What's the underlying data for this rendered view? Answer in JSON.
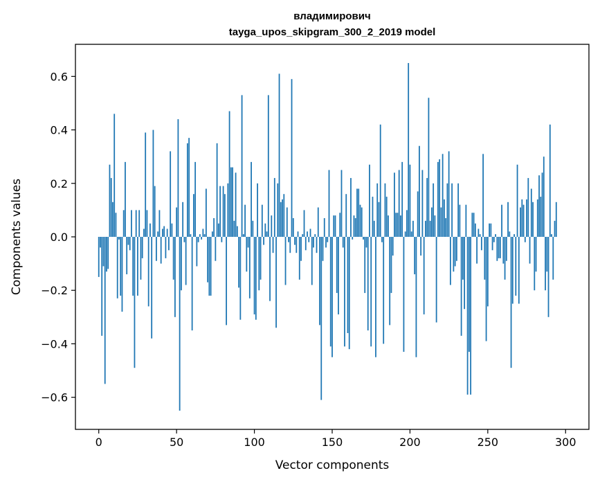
{
  "chart_data": {
    "type": "bar",
    "title_line1": "владимирович",
    "title_line2": "tayga_upos_skipgram_300_2_2019 model",
    "xlabel": "Vector components",
    "ylabel": "Components values",
    "xlim": [
      -15,
      315
    ],
    "ylim": [
      -0.72,
      0.72
    ],
    "xticks": [
      0,
      50,
      100,
      150,
      200,
      250,
      300
    ],
    "xtick_labels": [
      "0",
      "50",
      "100",
      "150",
      "200",
      "250",
      "300"
    ],
    "yticks": [
      -0.6,
      -0.4,
      -0.2,
      0.0,
      0.2,
      0.4,
      0.6
    ],
    "ytick_labels": [
      "−0.6",
      "−0.4",
      "−0.2",
      "0.0",
      "0.2",
      "0.4",
      "0.6"
    ],
    "bar_color": "#1f77b4",
    "values": [
      -0.15,
      -0.04,
      -0.37,
      -0.11,
      -0.55,
      -0.13,
      -0.12,
      0.27,
      0.22,
      0.13,
      0.46,
      0.09,
      -0.23,
      -0.01,
      -0.22,
      -0.28,
      0.1,
      0.28,
      -0.14,
      -0.03,
      -0.05,
      0.1,
      -0.22,
      -0.49,
      0.1,
      -0.22,
      0.1,
      -0.16,
      -0.08,
      0.03,
      0.39,
      0.1,
      -0.26,
      0.05,
      -0.38,
      0.4,
      0.19,
      -0.09,
      0.02,
      0.1,
      -0.1,
      0.03,
      0.04,
      -0.08,
      0.03,
      -0.05,
      0.32,
      0.05,
      -0.16,
      -0.3,
      0.11,
      0.44,
      -0.65,
      -0.2,
      0.13,
      -0.02,
      -0.18,
      0.35,
      0.37,
      0.01,
      -0.35,
      0.16,
      0.28,
      -0.11,
      -0.02,
      0.01,
      -0.01,
      0.03,
      0.01,
      0.18,
      -0.17,
      -0.22,
      -0.22,
      0.02,
      0.07,
      -0.09,
      0.35,
      0.05,
      0.19,
      -0.02,
      0.19,
      0.16,
      -0.33,
      0.2,
      0.47,
      0.26,
      0.26,
      0.06,
      0.24,
      0.04,
      -0.19,
      -0.31,
      0.53,
      0.01,
      0.12,
      -0.13,
      -0.04,
      -0.23,
      0.28,
      0.06,
      -0.29,
      -0.31,
      0.2,
      -0.2,
      -0.16,
      0.12,
      -0.03,
      0.05,
      0.02,
      0.53,
      -0.24,
      0.08,
      -0.06,
      0.22,
      -0.34,
      0.2,
      0.61,
      0.13,
      0.14,
      0.16,
      -0.18,
      0.11,
      -0.02,
      -0.06,
      0.59,
      0.07,
      -0.03,
      -0.06,
      0.02,
      -0.16,
      -0.09,
      0.01,
      0.1,
      -0.05,
      0.02,
      -0.02,
      0.03,
      -0.18,
      -0.04,
      0.01,
      -0.06,
      0.11,
      -0.33,
      -0.61,
      -0.09,
      0.07,
      -0.04,
      -0.02,
      0.25,
      -0.41,
      -0.45,
      0.08,
      0.08,
      -0.21,
      -0.29,
      0.09,
      0.25,
      -0.04,
      -0.41,
      0.16,
      -0.36,
      -0.42,
      0.22,
      -0.01,
      0.08,
      0.07,
      0.18,
      0.18,
      0.12,
      0.11,
      -0.01,
      -0.21,
      -0.04,
      -0.35,
      0.27,
      -0.41,
      0.15,
      0.06,
      -0.45,
      0.2,
      0.13,
      0.42,
      -0.02,
      -0.4,
      0.2,
      0.15,
      0.08,
      -0.33,
      -0.21,
      -0.07,
      0.24,
      0.09,
      0.09,
      0.25,
      0.08,
      0.28,
      -0.43,
      0.02,
      0.1,
      0.65,
      0.27,
      0.02,
      0.06,
      -0.14,
      -0.45,
      0.17,
      0.34,
      -0.07,
      0.25,
      -0.29,
      0.06,
      0.22,
      0.52,
      0.06,
      0.11,
      0.2,
      0.08,
      -0.32,
      0.28,
      0.29,
      0.11,
      0.31,
      0.14,
      0.07,
      0.2,
      0.32,
      -0.18,
      0.2,
      -0.13,
      -0.11,
      -0.09,
      0.2,
      0.12,
      -0.37,
      -0.16,
      -0.27,
      0.12,
      -0.59,
      -0.43,
      -0.59,
      0.09,
      0.09,
      0.05,
      -0.1,
      0.03,
      0.01,
      -0.05,
      0.31,
      -0.16,
      -0.39,
      -0.26,
      0.05,
      0.05,
      -0.05,
      -0.02,
      0.01,
      -0.09,
      -0.08,
      -0.08,
      0.12,
      -0.1,
      -0.16,
      -0.09,
      0.13,
      0.02,
      -0.49,
      -0.25,
      0.01,
      -0.22,
      0.27,
      -0.25,
      0.11,
      0.14,
      0.12,
      -0.02,
      0.14,
      0.22,
      -0.1,
      0.18,
      0.13,
      -0.2,
      -0.13,
      0.14,
      0.23,
      0.15,
      0.24,
      0.3,
      -0.2,
      -0.13,
      -0.3,
      0.42,
      0.01,
      -0.16,
      0.06,
      0.13
    ]
  }
}
